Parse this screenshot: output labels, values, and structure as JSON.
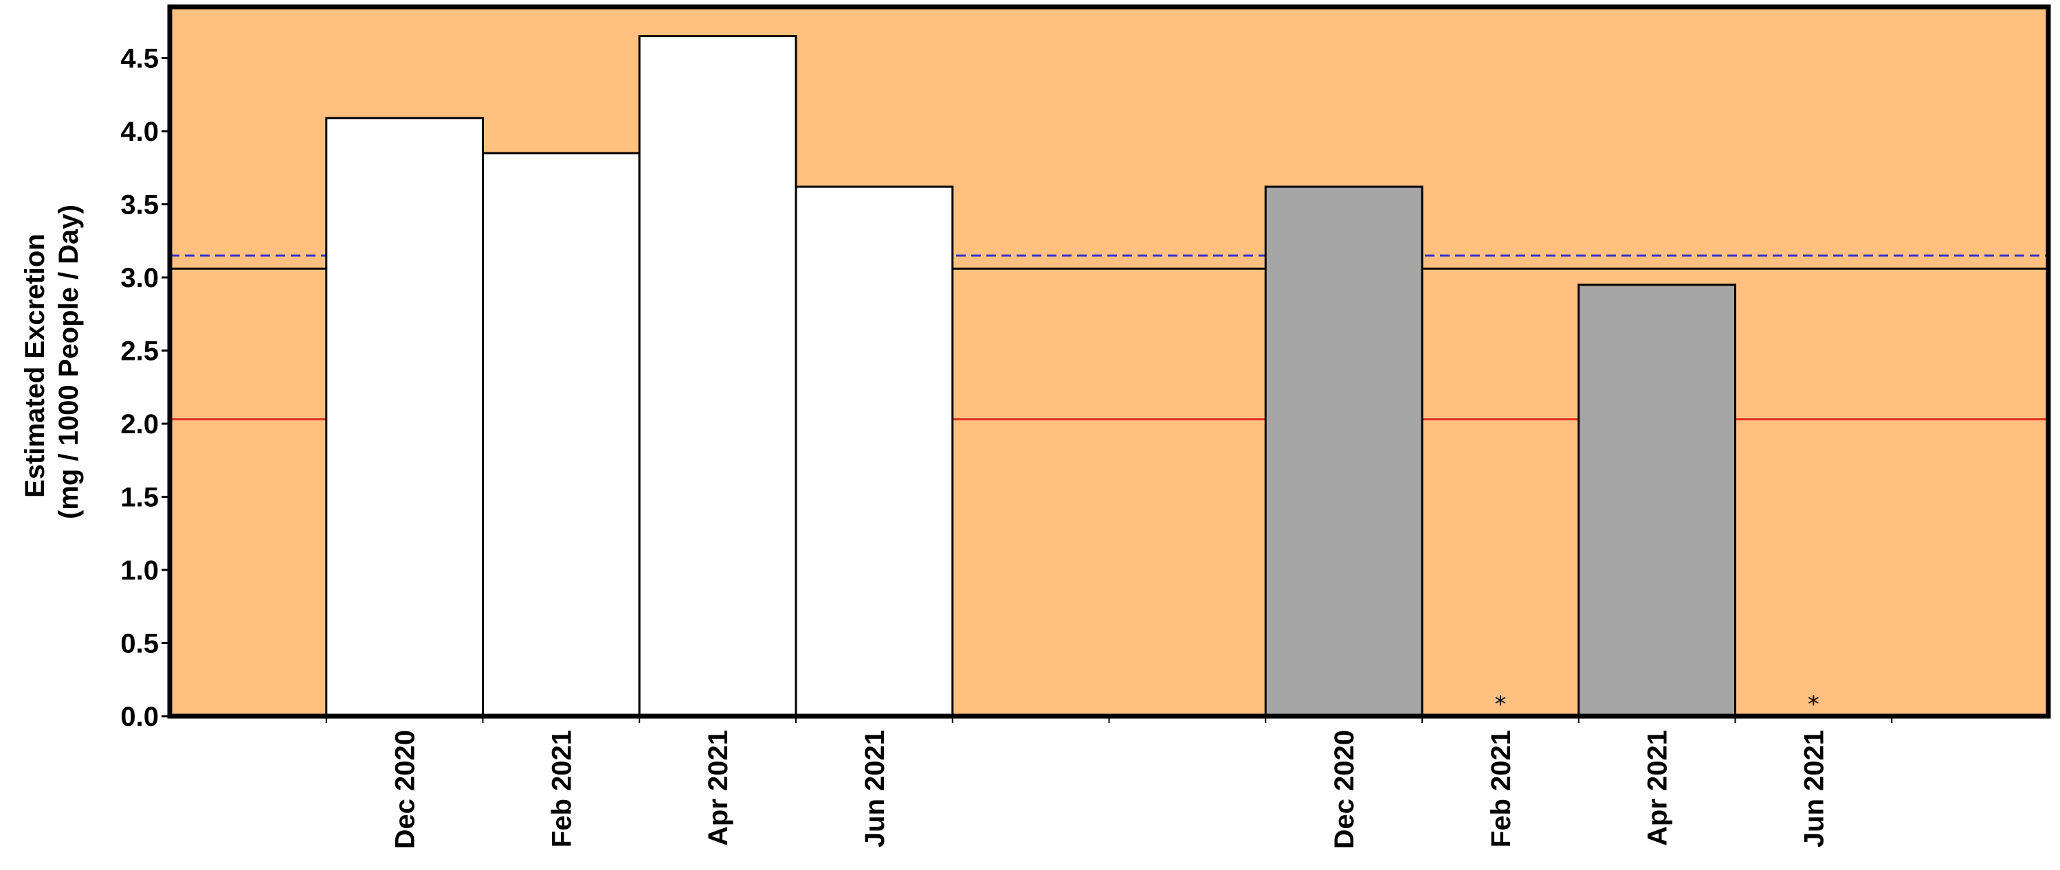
{
  "chart_data": {
    "type": "bar",
    "ylabel_line1": "Estimated Excretion",
    "ylabel_line2": "(mg / 1000 People / Day)",
    "ylim": [
      0,
      4.85
    ],
    "yticks": [
      "0.0",
      "0.5",
      "1.0",
      "1.5",
      "2.0",
      "2.5",
      "3.0",
      "3.5",
      "4.0",
      "4.5"
    ],
    "xlim": [
      0,
      12
    ],
    "x_tick_positions": [
      1,
      2,
      3,
      4,
      5,
      6,
      7,
      8,
      9,
      10,
      11
    ],
    "x_label_positions": [
      1.5,
      2.5,
      3.5,
      4.5,
      7.5,
      8.5,
      9.5,
      10.5
    ],
    "x_labels": [
      "Dec 2020",
      "Feb 2021",
      "Apr 2021",
      "Jun 2021",
      "Dec 2020",
      "Feb 2021",
      "Apr 2021",
      "Jun 2021"
    ],
    "groups": [
      {
        "fill": "#ffffff",
        "bars": [
          {
            "label": "Dec 2020",
            "value": 4.09
          },
          {
            "label": "Feb 2021",
            "value": 3.85
          },
          {
            "label": "Apr 2021",
            "value": 4.65
          },
          {
            "label": "Jun 2021",
            "value": 3.62
          }
        ]
      },
      {
        "fill": "#a6a6a6",
        "bars": [
          {
            "label": "Dec 2020",
            "value": 3.62
          },
          {
            "label": "Feb 2021",
            "value": null,
            "marker": "*"
          },
          {
            "label": "Apr 2021",
            "value": 2.95
          },
          {
            "label": "Jun 2021",
            "value": null,
            "marker": "*"
          }
        ]
      }
    ],
    "reference_lines": [
      {
        "value": 3.15,
        "color": "#3333cc",
        "style": "dashed"
      },
      {
        "value": 3.06,
        "color": "#000000",
        "style": "solid"
      },
      {
        "value": 2.03,
        "color": "#e0301e",
        "style": "solid"
      }
    ],
    "background_color": "#ffc080",
    "grid": false,
    "legend": "none"
  }
}
